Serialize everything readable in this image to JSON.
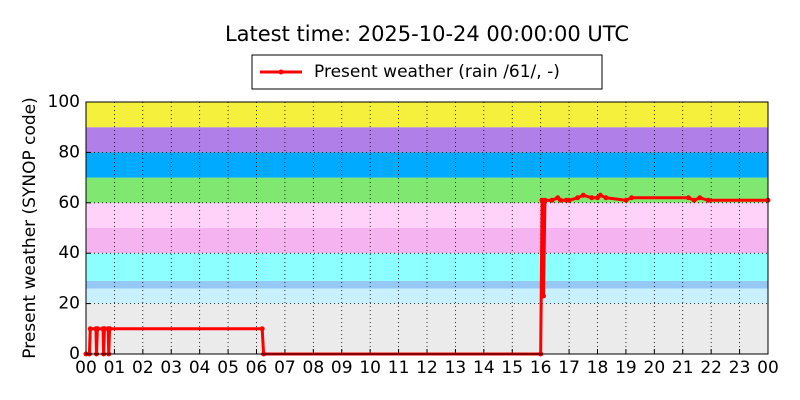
{
  "chart_data": {
    "type": "line",
    "title": "Latest time: 2025-10-24 00:00:00 UTC",
    "ylabel": "Present weather (SYNOP code)",
    "x": [
      0,
      0.12,
      0.15,
      0.35,
      0.37,
      0.4,
      0.6,
      0.62,
      0.65,
      0.78,
      0.8,
      0.83,
      6.2,
      6.25,
      16.0,
      16.05,
      16.1,
      16.15,
      16.4,
      16.6,
      16.7,
      16.9,
      17.0,
      17.3,
      17.5,
      17.8,
      18.0,
      18.1,
      18.3,
      19.0,
      19.2,
      21.2,
      21.4,
      21.6,
      21.9,
      24
    ],
    "series": [
      {
        "name": "Present weather (rain /61/, -)",
        "color": "#ff0000",
        "values": [
          0,
          0,
          10,
          10,
          0,
          10,
          10,
          0,
          10,
          10,
          0,
          10,
          10,
          0,
          0,
          61,
          23,
          61,
          61,
          62,
          61,
          61,
          61,
          62,
          63,
          62,
          62,
          63,
          62,
          61,
          62,
          62,
          61,
          62,
          61,
          61
        ]
      }
    ],
    "xlim": [
      0,
      24
    ],
    "xticks": [
      {
        "value": 0,
        "label": "00"
      },
      {
        "value": 1,
        "label": "01"
      },
      {
        "value": 2,
        "label": "02"
      },
      {
        "value": 3,
        "label": "03"
      },
      {
        "value": 4,
        "label": "04"
      },
      {
        "value": 5,
        "label": "05"
      },
      {
        "value": 6,
        "label": "06"
      },
      {
        "value": 7,
        "label": "07"
      },
      {
        "value": 8,
        "label": "08"
      },
      {
        "value": 9,
        "label": "09"
      },
      {
        "value": 10,
        "label": "10"
      },
      {
        "value": 11,
        "label": "11"
      },
      {
        "value": 12,
        "label": "12"
      },
      {
        "value": 13,
        "label": "13"
      },
      {
        "value": 14,
        "label": "14"
      },
      {
        "value": 15,
        "label": "15"
      },
      {
        "value": 16,
        "label": "16"
      },
      {
        "value": 17,
        "label": "17"
      },
      {
        "value": 18,
        "label": "18"
      },
      {
        "value": 19,
        "label": "19"
      },
      {
        "value": 20,
        "label": "20"
      },
      {
        "value": 21,
        "label": "21"
      },
      {
        "value": 22,
        "label": "22"
      },
      {
        "value": 23,
        "label": "23"
      },
      {
        "value": 24,
        "label": "00"
      }
    ],
    "ylim": [
      0,
      100
    ],
    "yticks": [
      0,
      20,
      40,
      60,
      80,
      100
    ],
    "grid": true,
    "legend": "top",
    "bands": [
      {
        "from": 0,
        "to": 20,
        "color": "#ebebeb"
      },
      {
        "from": 20,
        "to": 26,
        "color": "#c8f0ff"
      },
      {
        "from": 26,
        "to": 29,
        "color": "#96c8f5"
      },
      {
        "from": 29,
        "to": 40,
        "color": "#8cffff"
      },
      {
        "from": 40,
        "to": 50,
        "color": "#f5b4f0"
      },
      {
        "from": 50,
        "to": 60,
        "color": "#ffd2fa"
      },
      {
        "from": 60,
        "to": 70,
        "color": "#80e870"
      },
      {
        "from": 70,
        "to": 80,
        "color": "#00aaff"
      },
      {
        "from": 80,
        "to": 90,
        "color": "#b07fe8"
      },
      {
        "from": 90,
        "to": 100,
        "color": "#f5f03c"
      }
    ]
  }
}
